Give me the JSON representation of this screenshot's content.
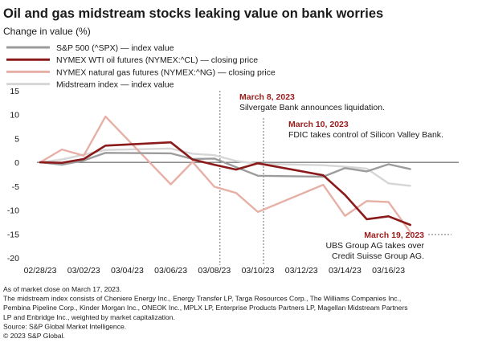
{
  "chart_data": {
    "type": "line",
    "title": "Oil and gas midstream stocks leaking value on bank worries",
    "ylabel": "Change in value (%)",
    "ylim": [
      -20,
      15
    ],
    "yticks": [
      15,
      10,
      5,
      0,
      -5,
      -10,
      -15,
      -20
    ],
    "x": [
      "02/28/23",
      "03/01/23",
      "03/02/23",
      "03/03/23",
      "03/06/23",
      "03/07/23",
      "03/08/23",
      "03/09/23",
      "03/10/23",
      "03/13/23",
      "03/14/23",
      "03/15/23",
      "03/16/23",
      "03/17/23"
    ],
    "x_tick_labels": [
      "02/28/23",
      "03/02/23",
      "03/04/23",
      "03/06/23",
      "03/08/23",
      "03/10/23",
      "03/12/23",
      "03/14/23",
      "03/16/23"
    ],
    "x_tick_dates": [
      "02/28/23",
      "03/02/23",
      "03/04/23",
      "03/06/23",
      "03/08/23",
      "03/10/23",
      "03/12/23",
      "03/14/23",
      "03/16/23"
    ],
    "series": [
      {
        "name": "Midstream index  — index value",
        "color": "#d6d6d6",
        "values": [
          0,
          0.6,
          1.6,
          2.6,
          2.9,
          1.8,
          1.5,
          0.3,
          -0.3,
          -0.6,
          -0.9,
          -1.3,
          -4.4,
          -4.9
        ]
      },
      {
        "name": "NYMEX natural gas futures (NYMEX:^NG) — closing price",
        "color": "#e7b0a7",
        "values": [
          0,
          2.7,
          1.4,
          9.6,
          -4.6,
          0.1,
          -5.1,
          -6.4,
          -10.4,
          -4.7,
          -11.2,
          -8.1,
          -8.3,
          -14.6
        ]
      },
      {
        "name": "S&P 500 (^SPX) — index value",
        "color": "#9c9c9c",
        "values": [
          0,
          -0.5,
          0.4,
          2.0,
          1.9,
          0.7,
          0.8,
          -1.0,
          -2.8,
          -3.0,
          -1.2,
          -1.9,
          -0.4,
          -1.4
        ]
      },
      {
        "name": "NYMEX WTI oil futures (NYMEX:^CL) — closing price",
        "color": "#8b1a1a",
        "values": [
          0,
          -0.1,
          0.7,
          3.5,
          4.2,
          0.6,
          -0.5,
          -1.5,
          -0.2,
          -2.7,
          -6.8,
          -11.9,
          -11.3,
          -13.1
        ]
      }
    ],
    "legend_placement": "top-left",
    "grid": false,
    "annotations": [
      {
        "date": "March 8, 2023",
        "text": [
          "Silvergate Bank announces liquidation."
        ],
        "at": "03/08/23"
      },
      {
        "date": "March 10, 2023",
        "text": [
          "FDIC takes control of Silicon Valley Bank."
        ],
        "at": "03/10/23"
      },
      {
        "date": "March 19, 2023",
        "text": [
          "UBS Group AG takes over",
          "Credit Suisse Group AG."
        ],
        "at": "03/17/23"
      }
    ]
  },
  "footnotes": [
    "As of market close on March 17, 2023.",
    "The midstream index consists of Cheniere Energy Inc., Energy Transfer LP, Targa Resources Corp., The Williams Companies Inc.,",
    "Pembina Pipeline Corp., Kinder Morgan Inc., ONEOK Inc., MPLX LP, Enterprise Products Partners LP, Magellan Midstream Partners",
    "LP and Enbridge Inc., weighted by market capitalization.",
    "Source: S&P Global Market Intelligence.",
    "© 2023 S&P Global."
  ]
}
